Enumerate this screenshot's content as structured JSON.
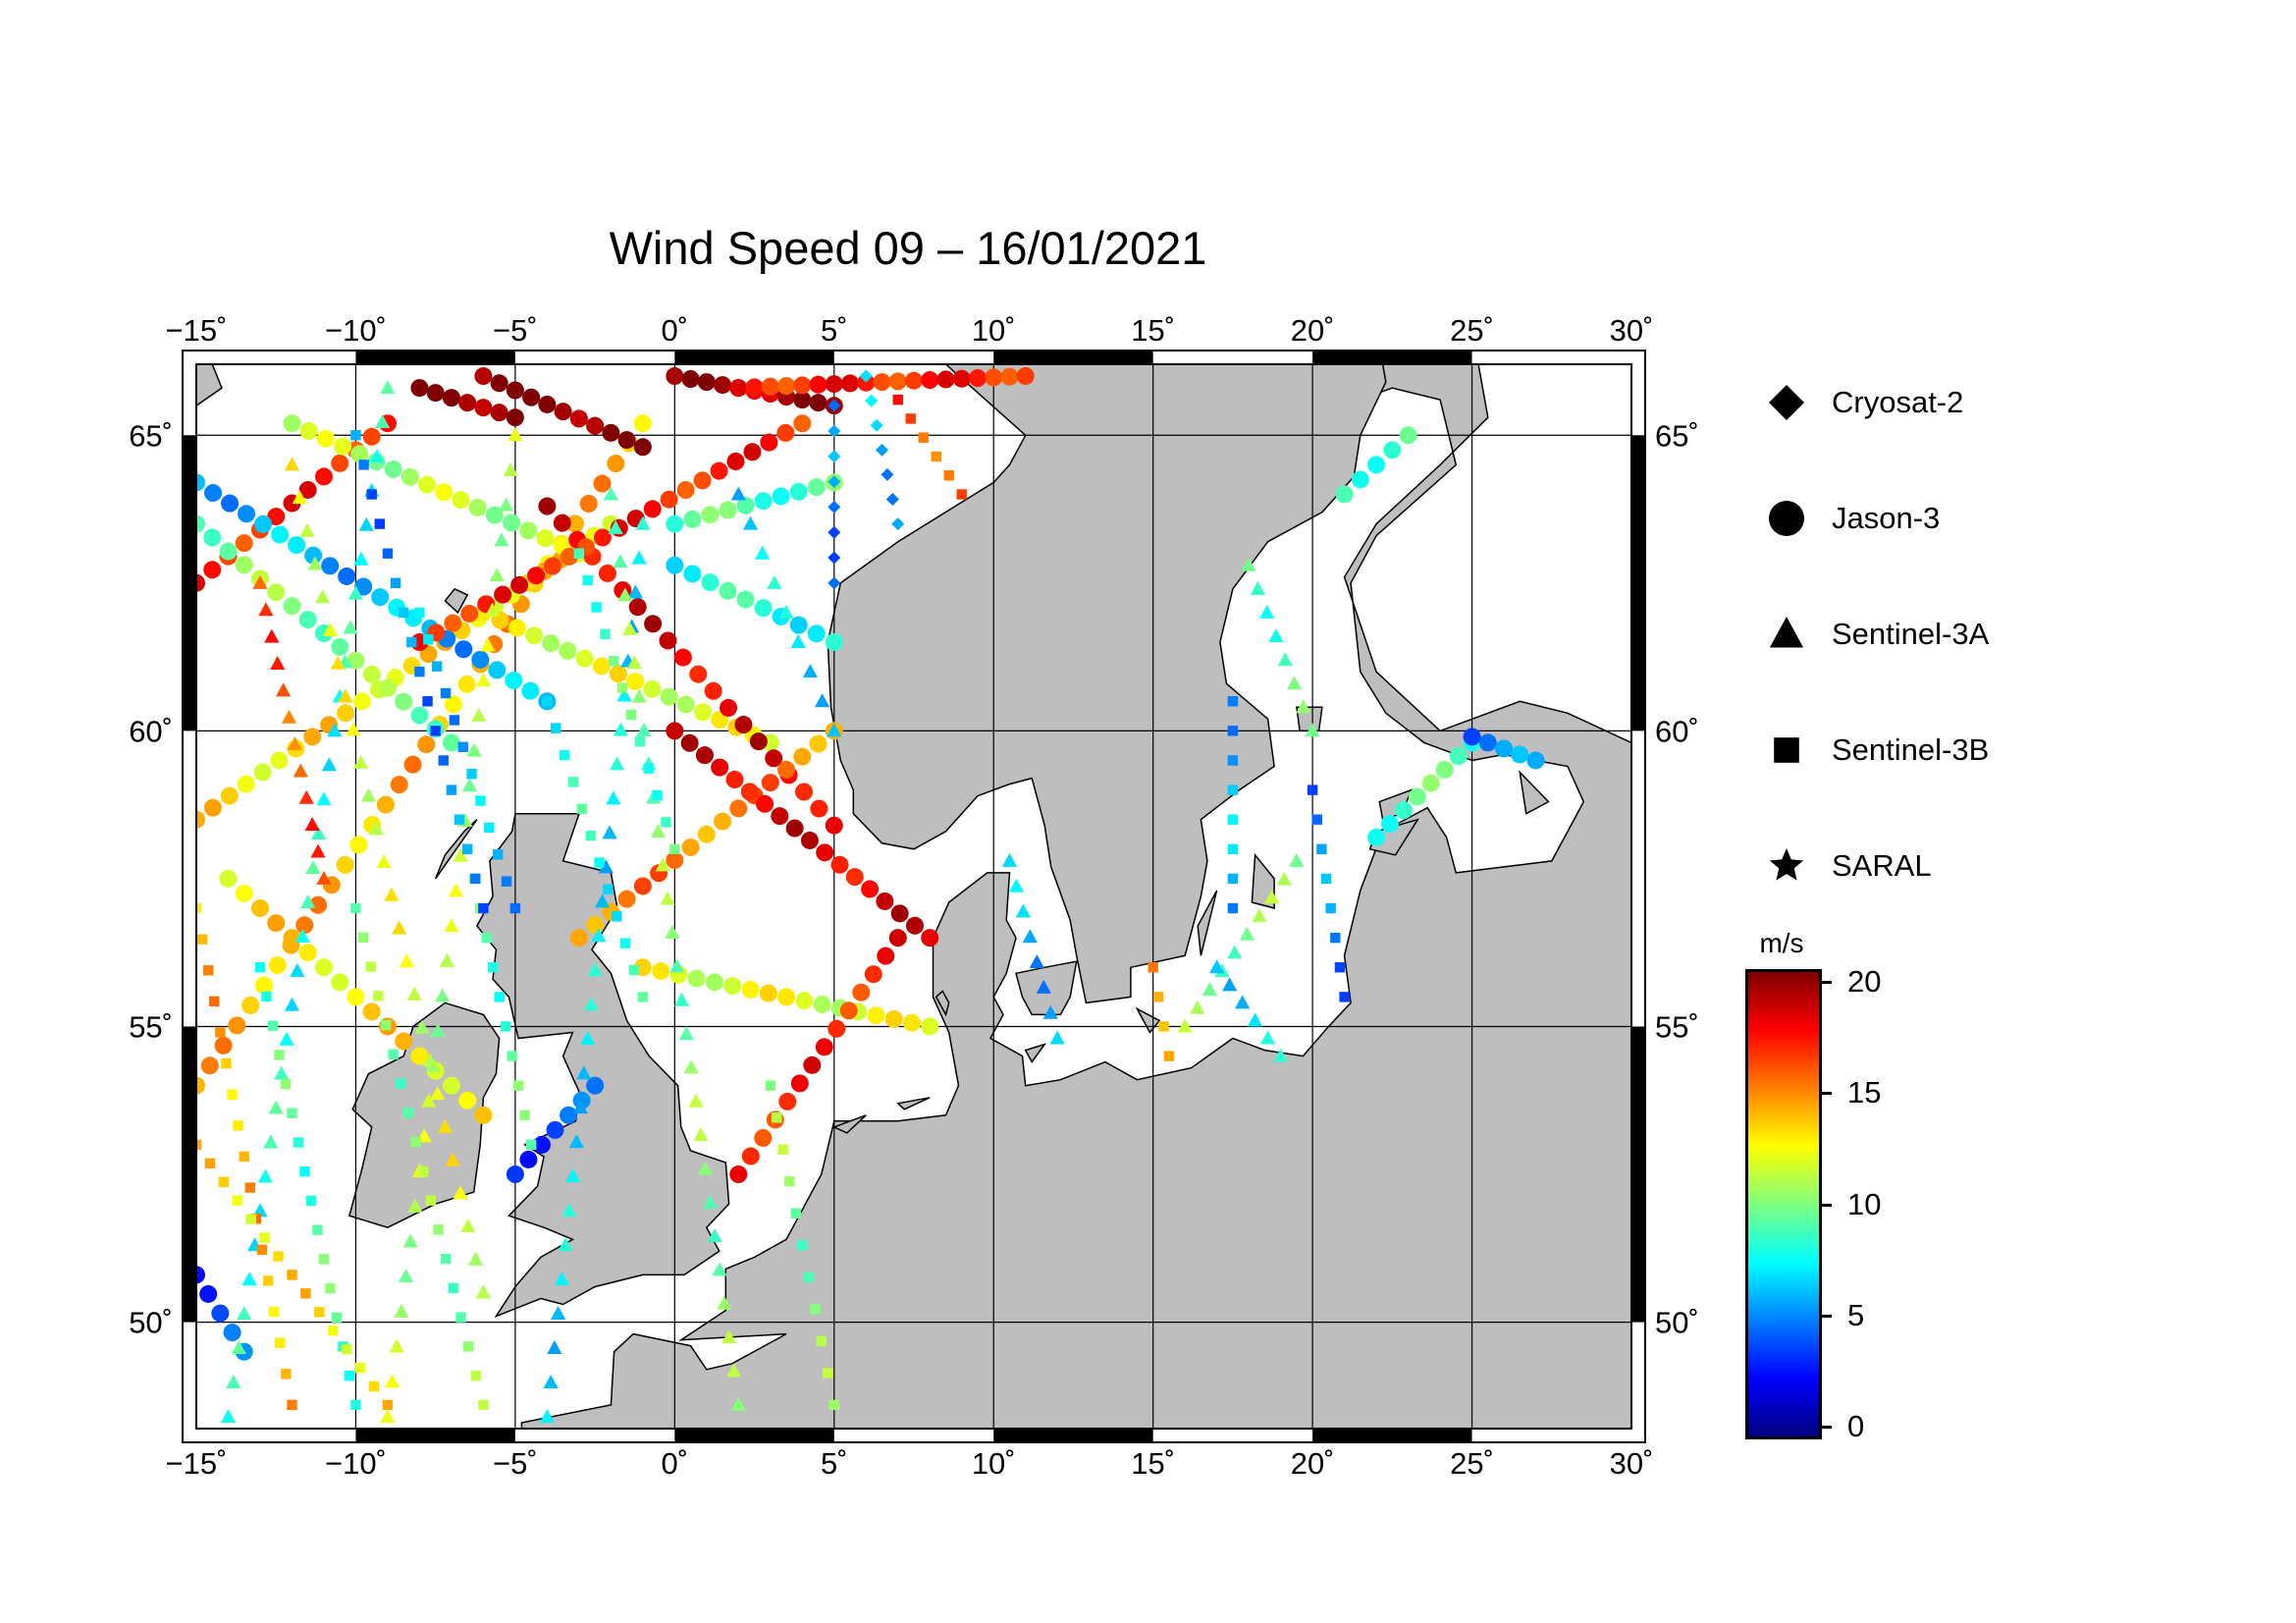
{
  "title": "Wind Speed 09 – 16/01/2021",
  "map": {
    "lon_range": [
      -15,
      30
    ],
    "lat_range": [
      48.2,
      66.2
    ],
    "lon_ticks": [
      {
        "value": -15,
        "label": "−15˚"
      },
      {
        "value": -10,
        "label": "−10˚"
      },
      {
        "value": -5,
        "label": "−5˚"
      },
      {
        "value": 0,
        "label": "0˚"
      },
      {
        "value": 5,
        "label": "5˚"
      },
      {
        "value": 10,
        "label": "10˚"
      },
      {
        "value": 15,
        "label": "15˚"
      },
      {
        "value": 20,
        "label": "20˚"
      },
      {
        "value": 25,
        "label": "25˚"
      },
      {
        "value": 30,
        "label": "30˚"
      }
    ],
    "lat_ticks": [
      {
        "value": 50,
        "label": "50˚"
      },
      {
        "value": 55,
        "label": "55˚"
      },
      {
        "value": 60,
        "label": "60˚"
      },
      {
        "value": 65,
        "label": "65˚"
      }
    ],
    "land_color": "#bebebe",
    "sea_color": "#ffffff",
    "grid": true
  },
  "legend": [
    {
      "name": "Cryosat-2",
      "symbol": "diamond"
    },
    {
      "name": "Jason-3",
      "symbol": "circle"
    },
    {
      "name": "Sentinel-3A",
      "symbol": "triangle"
    },
    {
      "name": "Sentinel-3B",
      "symbol": "square"
    },
    {
      "name": "SARAL",
      "symbol": "star"
    }
  ],
  "colorbar": {
    "unit": "m/s",
    "range": [
      0,
      20
    ],
    "ticks": [
      {
        "value": 20,
        "label": "20"
      },
      {
        "value": 15,
        "label": "15"
      },
      {
        "value": 10,
        "label": "10"
      },
      {
        "value": 5,
        "label": "5"
      },
      {
        "value": 0,
        "label": "0"
      }
    ],
    "colors": [
      "#00007f",
      "#0000ff",
      "#007fff",
      "#00ffff",
      "#7fff7f",
      "#ffff00",
      "#ff7f00",
      "#ff0000",
      "#7f0000"
    ]
  },
  "tracks": [
    {
      "satellite": "Jason-3",
      "from": [
        -15,
        54.0
      ],
      "to": [
        -1,
        65.2
      ],
      "speed": 14,
      "step": 0.55
    },
    {
      "satellite": "Jason-3",
      "from": [
        -15,
        58.5
      ],
      "to": [
        -2,
        63.5
      ],
      "speed": 13,
      "step": 0.55
    },
    {
      "satellite": "Jason-3",
      "from": [
        -15,
        62.5
      ],
      "to": [
        -9,
        65.2
      ],
      "speed": 17,
      "step": 0.55
    },
    {
      "satellite": "Jason-3",
      "from": [
        -15,
        64.2
      ],
      "to": [
        -4,
        60.5
      ],
      "speed": 6,
      "step": 0.55
    },
    {
      "satellite": "Jason-3",
      "from": [
        -15,
        63.5
      ],
      "to": [
        -7,
        59.8
      ],
      "speed": 10,
      "step": 0.55
    },
    {
      "satellite": "Jason-3",
      "from": [
        -14,
        57.5
      ],
      "to": [
        -6,
        53.5
      ],
      "speed": 13,
      "step": 0.55
    },
    {
      "satellite": "Jason-3",
      "from": [
        -12,
        65.2
      ],
      "to": [
        -3,
        63.0
      ],
      "speed": 11,
      "step": 0.55
    },
    {
      "satellite": "Jason-3",
      "from": [
        -6,
        62.0
      ],
      "to": [
        3,
        59.8
      ],
      "speed": 12,
      "step": 0.55
    },
    {
      "satellite": "Jason-3",
      "from": [
        -4,
        63.8
      ],
      "to": [
        5,
        58.4
      ],
      "speed": 18,
      "step": 0.55
    },
    {
      "satellite": "Jason-3",
      "from": [
        -8,
        61.5
      ],
      "to": [
        4,
        65.2
      ],
      "speed": 17,
      "step": 0.55
    },
    {
      "satellite": "Jason-3",
      "from": [
        -3,
        56.5
      ],
      "to": [
        5,
        60.0
      ],
      "speed": 15,
      "step": 0.55
    },
    {
      "satellite": "Jason-3",
      "from": [
        0,
        62.8
      ],
      "to": [
        5,
        61.5
      ],
      "speed": 8,
      "step": 0.55
    },
    {
      "satellite": "Jason-3",
      "from": [
        0,
        63.5
      ],
      "to": [
        5,
        64.2
      ],
      "speed": 9,
      "step": 0.55
    },
    {
      "satellite": "Jason-3",
      "from": [
        0,
        60.0
      ],
      "to": [
        8,
        56.5
      ],
      "speed": 18,
      "step": 0.5
    },
    {
      "satellite": "Jason-3",
      "from": [
        -1,
        56.0
      ],
      "to": [
        8,
        55.0
      ],
      "speed": 12,
      "step": 0.55
    },
    {
      "satellite": "Jason-3",
      "from": [
        2,
        52.5
      ],
      "to": [
        7,
        56.5
      ],
      "speed": 17,
      "step": 0.5
    },
    {
      "satellite": "Jason-3",
      "from": [
        -5,
        52.5
      ],
      "to": [
        -2.5,
        54.0
      ],
      "speed": 4,
      "step": 0.5
    },
    {
      "satellite": "Jason-3",
      "from": [
        -15,
        50.8
      ],
      "to": [
        -13.5,
        49.5
      ],
      "speed": 4,
      "step": 0.5
    },
    {
      "satellite": "Jason-3",
      "from": [
        -6,
        66.0
      ],
      "to": [
        -1,
        64.8
      ],
      "speed": 20,
      "step": 0.5
    },
    {
      "satellite": "Jason-3",
      "from": [
        0,
        66.0
      ],
      "to": [
        5,
        65.5
      ],
      "speed": 19,
      "step": 0.5
    },
    {
      "satellite": "Jason-3",
      "from": [
        -8,
        65.8
      ],
      "to": [
        -5,
        65.3
      ],
      "speed": 20,
      "step": 0.5
    },
    {
      "satellite": "Jason-3",
      "from": [
        2,
        65.8
      ],
      "to": [
        11,
        66.0
      ],
      "speed": 17,
      "step": 0.5
    },
    {
      "satellite": "Jason-3",
      "from": [
        21,
        64.0
      ],
      "to": [
        23,
        65.0
      ],
      "speed": 9,
      "step": 0.5
    },
    {
      "satellite": "Jason-3",
      "from": [
        22,
        58.2
      ],
      "to": [
        25,
        59.8
      ],
      "speed": 9,
      "step": 0.5
    },
    {
      "satellite": "Jason-3",
      "from": [
        25,
        59.9
      ],
      "to": [
        27,
        59.5
      ],
      "speed": 5,
      "step": 0.5
    },
    {
      "satellite": "Sentinel-3A",
      "from": [
        -14,
        48.4
      ],
      "to": [
        -9,
        65.8
      ],
      "speed": 8,
      "step": 0.6
    },
    {
      "satellite": "Sentinel-3A",
      "from": [
        -9,
        48.4
      ],
      "to": [
        -5,
        65.0
      ],
      "speed": 11,
      "step": 0.6
    },
    {
      "satellite": "Sentinel-3A",
      "from": [
        -12,
        64.5
      ],
      "to": [
        -6,
        50.5
      ],
      "speed": 12,
      "step": 0.6
    },
    {
      "satellite": "Sentinel-3A",
      "from": [
        -4,
        48.4
      ],
      "to": [
        -1,
        63.5
      ],
      "speed": 7,
      "step": 0.6
    },
    {
      "satellite": "Sentinel-3A",
      "from": [
        -2,
        64.0
      ],
      "to": [
        2,
        48.6
      ],
      "speed": 10,
      "step": 0.6
    },
    {
      "satellite": "Sentinel-3A",
      "from": [
        2,
        64.0
      ],
      "to": [
        5,
        60.0
      ],
      "speed": 7,
      "step": 0.6
    },
    {
      "satellite": "Sentinel-3A",
      "from": [
        -13,
        62.5
      ],
      "to": [
        -11,
        57.5
      ],
      "speed": 16,
      "step": 0.5
    },
    {
      "satellite": "Sentinel-3A",
      "from": [
        10.5,
        57.8
      ],
      "to": [
        12,
        54.8
      ],
      "speed": 6,
      "step": 0.5
    },
    {
      "satellite": "Sentinel-3A",
      "from": [
        16,
        55.0
      ],
      "to": [
        19.5,
        57.8
      ],
      "speed": 10,
      "step": 0.5
    },
    {
      "satellite": "Sentinel-3A",
      "from": [
        18,
        62.8
      ],
      "to": [
        20,
        60.0
      ],
      "speed": 9,
      "step": 0.5
    },
    {
      "satellite": "Sentinel-3A",
      "from": [
        17,
        56.0
      ],
      "to": [
        19,
        54.5
      ],
      "speed": 7,
      "step": 0.5
    },
    {
      "satellite": "Sentinel-3B",
      "from": [
        -13,
        56.0
      ],
      "to": [
        -10,
        48.6
      ],
      "speed": 9,
      "step": 0.55
    },
    {
      "satellite": "Sentinel-3B",
      "from": [
        -10,
        57.0
      ],
      "to": [
        -6,
        48.6
      ],
      "speed": 10,
      "step": 0.55
    },
    {
      "satellite": "Sentinel-3B",
      "from": [
        -6.5,
        58.0
      ],
      "to": [
        -4.5,
        53.0
      ],
      "speed": 9,
      "step": 0.55
    },
    {
      "satellite": "Sentinel-3B",
      "from": [
        -8,
        62.0
      ],
      "to": [
        -5,
        57.0
      ],
      "speed": 6,
      "step": 0.55
    },
    {
      "satellite": "Sentinel-3B",
      "from": [
        -10,
        65.0
      ],
      "to": [
        -6,
        57.0
      ],
      "speed": 5,
      "step": 0.55
    },
    {
      "satellite": "Sentinel-3B",
      "from": [
        -3,
        63.0
      ],
      "to": [
        0,
        58.0
      ],
      "speed": 9,
      "step": 0.55
    },
    {
      "satellite": "Sentinel-3B",
      "from": [
        -4,
        60.5
      ],
      "to": [
        -1,
        55.5
      ],
      "speed": 8,
      "step": 0.55
    },
    {
      "satellite": "Sentinel-3B",
      "from": [
        -15,
        57.0
      ],
      "to": [
        -12,
        48.6
      ],
      "speed": 14,
      "step": 0.55
    },
    {
      "satellite": "Sentinel-3B",
      "from": [
        3,
        54.0
      ],
      "to": [
        5,
        48.6
      ],
      "speed": 10,
      "step": 0.55
    },
    {
      "satellite": "Sentinel-3B",
      "from": [
        -15,
        53.0
      ],
      "to": [
        -9,
        48.6
      ],
      "speed": 13,
      "step": 0.55
    },
    {
      "satellite": "Sentinel-3B",
      "from": [
        7,
        65.6
      ],
      "to": [
        9,
        64.0
      ],
      "speed": 16,
      "step": 0.5
    },
    {
      "satellite": "Sentinel-3B",
      "from": [
        15,
        56.0
      ],
      "to": [
        15.5,
        54.5
      ],
      "speed": 15,
      "step": 0.5
    },
    {
      "satellite": "Sentinel-3B",
      "from": [
        17.5,
        60.5
      ],
      "to": [
        17.5,
        57.0
      ],
      "speed": 6,
      "step": 0.5
    },
    {
      "satellite": "Sentinel-3B",
      "from": [
        20,
        59.0
      ],
      "to": [
        21,
        55.5
      ],
      "speed": 5,
      "step": 0.5
    },
    {
      "satellite": "Cryosat-2",
      "from": [
        5,
        65.5
      ],
      "to": [
        5,
        62.5
      ],
      "speed": 5,
      "step": 0.45
    },
    {
      "satellite": "Cryosat-2",
      "from": [
        6,
        66.0
      ],
      "to": [
        7,
        63.5
      ],
      "speed": 6,
      "step": 0.45
    }
  ]
}
